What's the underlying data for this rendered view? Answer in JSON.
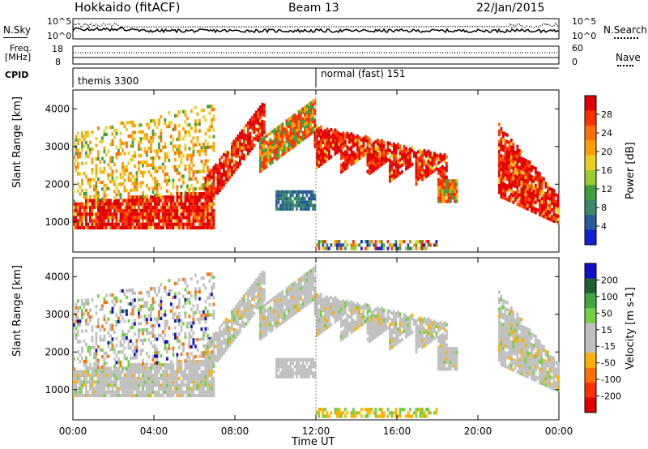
{
  "header": {
    "title": "Hokkaido (fitACF)",
    "beam": "Beam 13",
    "date": "22/Jan/2015"
  },
  "strips": {
    "nsky_label": "N.Sky",
    "nsky_ticks": [
      "10^5",
      "10^0"
    ],
    "nsearch_label": "N.Search",
    "nsearch_ticks": [
      "10^5",
      "10^0"
    ],
    "freq_label": "Freq.",
    "freq_unit": "[MHz]",
    "freq_ticks": [
      "18",
      "8"
    ],
    "nave_label": "Nave",
    "nave_ticks": [
      "60",
      "0"
    ],
    "cpid_label": "CPID",
    "cpid_segments": [
      "themis 3300",
      "normal (fast) 151"
    ]
  },
  "chart_data": [
    {
      "type": "heatmap",
      "title": "",
      "ylabel": "Slant Range [km]",
      "xlabel": "",
      "x_ticks": [
        "00:00",
        "04:00",
        "08:00",
        "12:00",
        "16:00",
        "20:00",
        "00:00"
      ],
      "y_ticks": [
        1000,
        2000,
        3000,
        4000
      ],
      "ylim": [
        200,
        4500
      ],
      "colorbar": {
        "label": "Power [dB]",
        "ticks": [
          "28",
          "24",
          "20",
          "16",
          "12",
          "8",
          "4"
        ],
        "colors": [
          "#e00000",
          "#ff3000",
          "#ff7000",
          "#ffa000",
          "#e8d020",
          "#98cc30",
          "#40a040",
          "#3a8a6a",
          "#2a5a9a",
          "#1020d0"
        ]
      },
      "grid": false
    },
    {
      "type": "heatmap",
      "title": "",
      "ylabel": "Slant Range [km]",
      "xlabel": "Time UT",
      "x_ticks": [
        "00:00",
        "04:00",
        "08:00",
        "12:00",
        "16:00",
        "20:00",
        "00:00"
      ],
      "y_ticks": [
        1000,
        2000,
        3000,
        4000
      ],
      "ylim": [
        200,
        4500
      ],
      "colorbar": {
        "label": "Velocity [m s-1]",
        "ticks": [
          "200",
          "100",
          "50",
          "15",
          "-15",
          "-50",
          "-100",
          "-200"
        ],
        "colors": [
          "#1010c8",
          "#206030",
          "#40a840",
          "#70d040",
          "#c0c0c0",
          "#c0c0c0",
          "#ffb000",
          "#ff7000",
          "#ff3000",
          "#e00000"
        ]
      },
      "grid": false
    }
  ]
}
